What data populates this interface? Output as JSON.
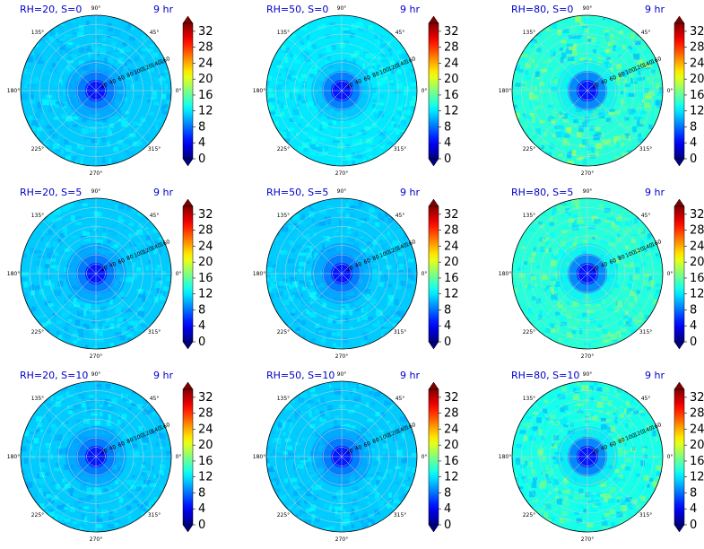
{
  "colors": {
    "title": "#0000cc",
    "colormap": "jet"
  },
  "chart_data": {
    "type": "heatmap",
    "projection": "polar",
    "layout_grid": [
      3,
      3
    ],
    "colorbar": {
      "ticks": [
        "0",
        "4",
        "8",
        "12",
        "16",
        "20",
        "24",
        "28",
        "32"
      ],
      "min": 0,
      "max": 34,
      "extend": "both"
    },
    "angular_ticks": [
      "0°",
      "45°",
      "90°",
      "135°",
      "180°",
      "225°",
      "270°",
      "315°"
    ],
    "radial_ticks": [
      "20",
      "40",
      "60",
      "80",
      "100",
      "120",
      "140",
      "160"
    ],
    "radial_max": 160,
    "grid": true,
    "panels": [
      {
        "title": "RH=20, S=0",
        "time": "9 hr",
        "center_value": 5,
        "background_value": 11,
        "peak_value": 13
      },
      {
        "title": "RH=50, S=0",
        "time": "9 hr",
        "center_value": 5,
        "background_value": 12,
        "peak_value": 14
      },
      {
        "title": "RH=80, S=0",
        "time": "9 hr",
        "center_value": 5,
        "background_value": 14,
        "peak_value": 19
      },
      {
        "title": "RH=20, S=5",
        "time": "9 hr",
        "center_value": 5,
        "background_value": 11,
        "peak_value": 13
      },
      {
        "title": "RH=50, S=5",
        "time": "9 hr",
        "center_value": 5,
        "background_value": 11,
        "peak_value": 13
      },
      {
        "title": "RH=80, S=5",
        "time": "9 hr",
        "center_value": 5,
        "background_value": 14,
        "peak_value": 18
      },
      {
        "title": "RH=20, S=10",
        "time": "9 hr",
        "center_value": 5,
        "background_value": 11,
        "peak_value": 13
      },
      {
        "title": "RH=50, S=10",
        "time": "9 hr",
        "center_value": 5,
        "background_value": 11,
        "peak_value": 13
      },
      {
        "title": "RH=80, S=10",
        "time": "9 hr",
        "center_value": 5,
        "background_value": 13.5,
        "peak_value": 18
      }
    ]
  }
}
